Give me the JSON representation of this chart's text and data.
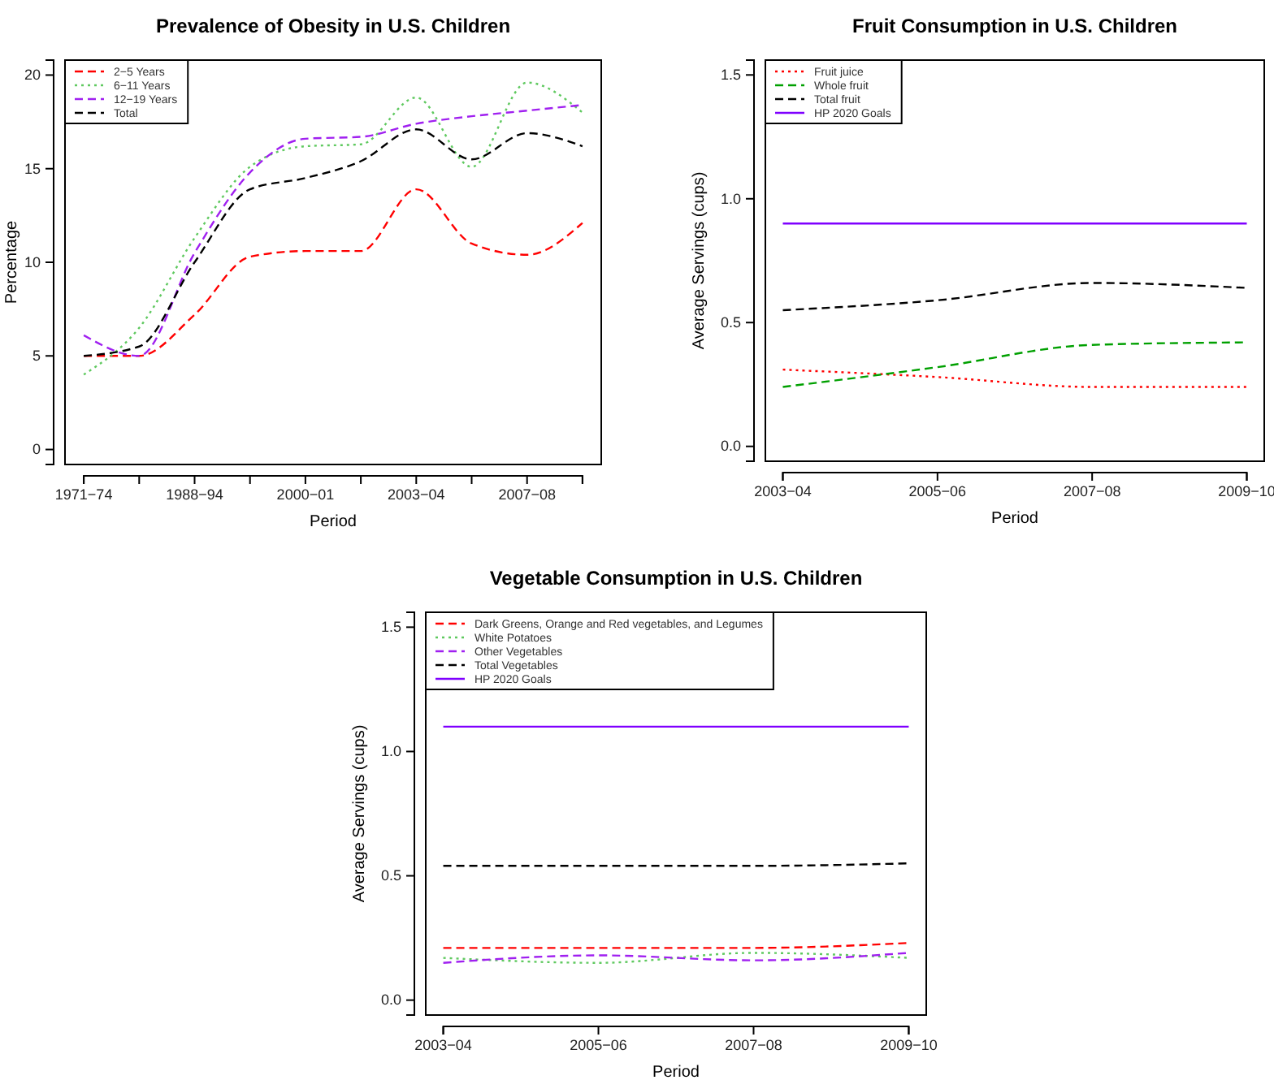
{
  "chart_data": [
    {
      "type": "line",
      "title": "Prevalence of Obesity in U.S. Children",
      "xlabel": "Period",
      "ylabel": "Percentage",
      "categories": [
        "1971−74",
        null,
        "1988−94",
        null,
        "2000−01",
        null,
        "2003−04",
        null,
        "2007−08",
        null
      ],
      "ylim": [
        -0.8,
        20.8
      ],
      "yticks": [
        0,
        5,
        10,
        15,
        20
      ],
      "grid": false,
      "legend": "top left",
      "marker": "none",
      "series": [
        {
          "name": "2−5 Years",
          "color": "#ff0000",
          "line_style": "dashed",
          "values": [
            5,
            5,
            7.2,
            10.3,
            10.6,
            10.6,
            13.9,
            11,
            10.4,
            12.1
          ]
        },
        {
          "name": "6−11 Years",
          "color": "#5fc95f",
          "line_style": "dotted",
          "values": [
            4,
            6.5,
            11.3,
            15.1,
            16.2,
            16.3,
            18.8,
            15.1,
            19.6,
            18
          ]
        },
        {
          "name": "12−19 Years",
          "color": "#a020f0",
          "line_style": "dashed",
          "values": [
            6.1,
            5,
            10.5,
            14.8,
            16.6,
            16.7,
            17.4,
            17.8,
            18.1,
            18.4
          ]
        },
        {
          "name": "Total",
          "color": "#000000",
          "line_style": "dashed",
          "values": [
            5,
            5.5,
            10,
            13.9,
            14.5,
            15.4,
            17.1,
            15.5,
            16.9,
            16.2
          ]
        }
      ]
    },
    {
      "type": "line",
      "title": "Fruit Consumption in U.S. Children",
      "xlabel": "Period",
      "ylabel": "Average Servings (cups)",
      "categories": [
        "2003−04",
        "2005−06",
        "2007−08",
        "2009−10"
      ],
      "ylim": [
        -0.06,
        1.56
      ],
      "yticks": [
        {
          "value": 0,
          "label": "0.0"
        },
        {
          "value": 0.5,
          "label": "0.5"
        },
        {
          "value": 1,
          "label": "1.0"
        },
        {
          "value": 1.5,
          "label": "1.5"
        }
      ],
      "grid": false,
      "legend": "top left",
      "marker": "none",
      "series": [
        {
          "name": "Fruit juice",
          "color": "#ff0000",
          "line_style": "dotted",
          "values": [
            0.31,
            0.28,
            0.24,
            0.24
          ]
        },
        {
          "name": "Whole fruit",
          "color": "#00a000",
          "line_style": "dashed",
          "values": [
            0.24,
            0.32,
            0.41,
            0.42
          ]
        },
        {
          "name": "Total fruit",
          "color": "#000000",
          "line_style": "dashed",
          "values": [
            0.55,
            0.59,
            0.66,
            0.64
          ]
        },
        {
          "name": "HP 2020 Goals",
          "color": "#7f00ff",
          "line_style": "solid",
          "values": [
            0.9,
            0.9,
            0.9,
            0.9
          ]
        }
      ]
    },
    {
      "type": "line",
      "title": "Vegetable Consumption in U.S. Children",
      "xlabel": "Period",
      "ylabel": "Average Servings (cups)",
      "categories": [
        "2003−04",
        "2005−06",
        "2007−08",
        "2009−10"
      ],
      "ylim": [
        -0.06,
        1.56
      ],
      "yticks": [
        {
          "value": 0,
          "label": "0.0"
        },
        {
          "value": 0.5,
          "label": "0.5"
        },
        {
          "value": 1,
          "label": "1.0"
        },
        {
          "value": 1.5,
          "label": "1.5"
        }
      ],
      "grid": false,
      "legend": "top left",
      "marker": "none",
      "series": [
        {
          "name": "Dark Greens, Orange and Red vegetables, and Legumes",
          "color": "#ff0000",
          "line_style": "dashed",
          "values": [
            0.21,
            0.21,
            0.21,
            0.23
          ]
        },
        {
          "name": "White Potatoes",
          "color": "#5fc95f",
          "line_style": "dotted",
          "values": [
            0.17,
            0.15,
            0.19,
            0.17
          ]
        },
        {
          "name": "Other Vegetables",
          "color": "#a020f0",
          "line_style": "dashed",
          "values": [
            0.15,
            0.18,
            0.16,
            0.19
          ]
        },
        {
          "name": "Total Vegetables",
          "color": "#000000",
          "line_style": "dashed",
          "values": [
            0.54,
            0.54,
            0.54,
            0.55
          ]
        },
        {
          "name": "HP 2020 Goals",
          "color": "#7f00ff",
          "line_style": "solid",
          "values": [
            1.1,
            1.1,
            1.1,
            1.1
          ]
        }
      ]
    }
  ]
}
